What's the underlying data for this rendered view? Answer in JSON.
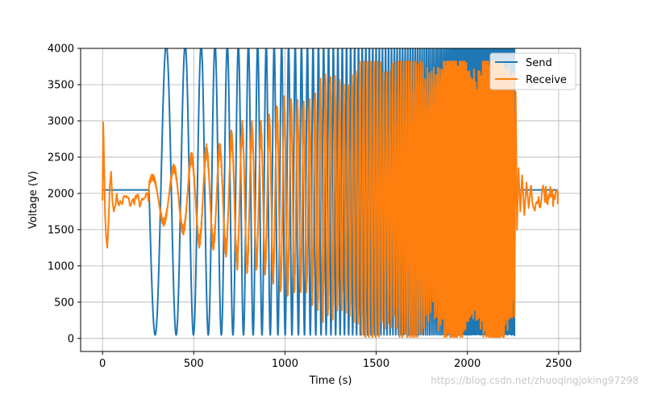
{
  "chart_data": {
    "type": "line",
    "xlabel": "Time (s)",
    "ylabel": "Voltage (V)",
    "xlim": [
      -120,
      2620
    ],
    "ylim": [
      -180,
      4000
    ],
    "xticks": [
      0,
      500,
      1000,
      1500,
      2000,
      2500
    ],
    "yticks": [
      0,
      500,
      1000,
      1500,
      2000,
      2500,
      3000,
      3500,
      4000
    ],
    "grid": true,
    "legend_position": "top-right",
    "series": [
      {
        "name": "Send",
        "color": "#1f77b4",
        "style": "chirp sine wave, flat at 2048 before and after sweep",
        "baseline": 2048,
        "amplitude": 2000,
        "sweep_start": 255,
        "sweep_end": 2258,
        "data_end": 2495,
        "start_period": 140,
        "end_period": 6
      },
      {
        "name": "Receive",
        "color": "#ff7f0e",
        "style": "noisy response, amplitude grows with frequency",
        "baseline": 1900,
        "peak_max": 3820,
        "trough_min": 20,
        "x_start": 0,
        "x_end": 2495
      }
    ]
  },
  "watermark": "https://blog.csdn.net/zhuoqingjoking97298"
}
